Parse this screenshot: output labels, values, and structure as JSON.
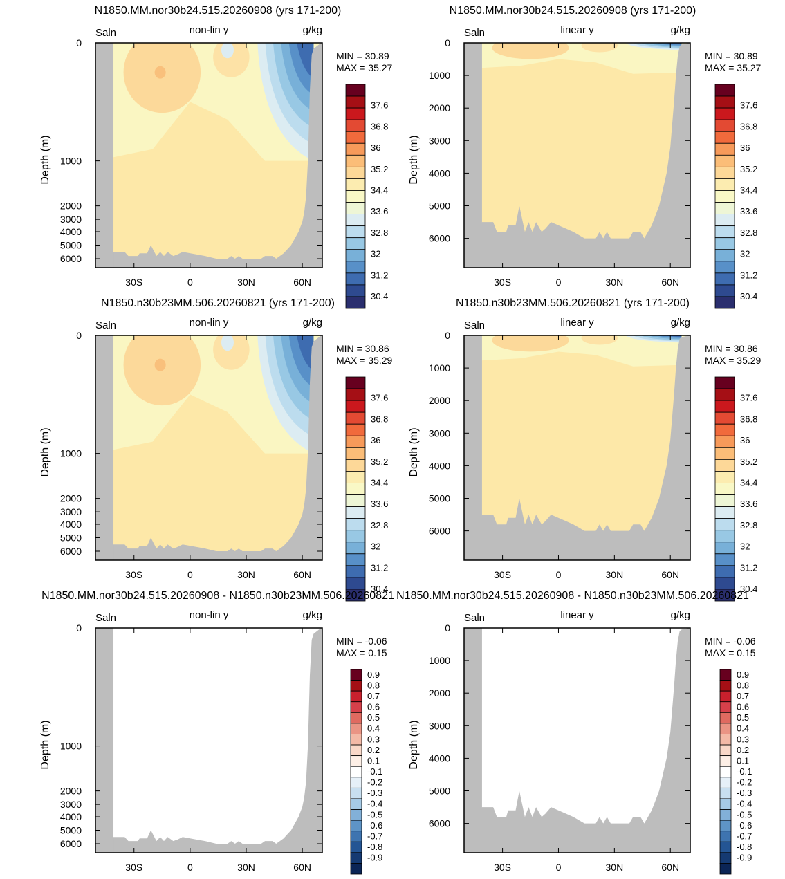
{
  "chart_data": [
    {
      "type": "heatmap",
      "title": "N1850.MM.nor30b24.515.20260908 (yrs 171-200)",
      "left_label": "Saln",
      "center_label": "non-lin y",
      "right_label": "g/kg",
      "ylabel": "Depth (m)",
      "y_scale": "non-linear",
      "yticks": [
        "0",
        "1000",
        "2000",
        "3000",
        "4000",
        "5000",
        "6000"
      ],
      "xticks": [
        "30S",
        "0",
        "30N",
        "60N"
      ],
      "min_text": "MIN =  30.89",
      "max_text": "MAX =  35.27",
      "colorbar_labels": [
        "37.6",
        "36.8",
        "36",
        "35.2",
        "34.4",
        "33.6",
        "32.8",
        "32",
        "31.2",
        "30.4"
      ],
      "colors": [
        "#67001f",
        "#a50f15",
        "#cb181d",
        "#e34a33",
        "#f16a3c",
        "#f79a5a",
        "#fbbd78",
        "#fdd898",
        "#fcecb0",
        "#f9f8c6",
        "#eef6d6",
        "#dcecf2",
        "#bcdcee",
        "#98c8e4",
        "#78b0d8",
        "#5890c8",
        "#3e6cb0",
        "#2e4a90",
        "#2a2e6e"
      ],
      "levels_summary": {
        "surface_north": 30.89,
        "subtropical_max": 35.27
      }
    },
    {
      "type": "heatmap",
      "title": "N1850.MM.nor30b24.515.20260908 (yrs 171-200)",
      "left_label": "Saln",
      "center_label": "linear y",
      "right_label": "g/kg",
      "ylabel": "Depth (m)",
      "y_scale": "linear",
      "yticks": [
        "0",
        "1000",
        "2000",
        "3000",
        "4000",
        "5000",
        "6000"
      ],
      "xticks": [
        "30S",
        "0",
        "30N",
        "60N"
      ],
      "min_text": "MIN =  30.89",
      "max_text": "MAX =  35.27",
      "colorbar_labels": [
        "37.6",
        "36.8",
        "36",
        "35.2",
        "34.4",
        "33.6",
        "32.8",
        "32",
        "31.2",
        "30.4"
      ]
    },
    {
      "type": "heatmap",
      "title": "N1850.n30b23MM.506.20260821 (yrs 171-200)",
      "left_label": "Saln",
      "center_label": "non-lin y",
      "right_label": "g/kg",
      "ylabel": "Depth (m)",
      "y_scale": "non-linear",
      "yticks": [
        "0",
        "1000",
        "2000",
        "3000",
        "4000",
        "5000",
        "6000"
      ],
      "xticks": [
        "30S",
        "0",
        "30N",
        "60N"
      ],
      "min_text": "MIN =  30.86",
      "max_text": "MAX =  35.29",
      "colorbar_labels": [
        "37.6",
        "36.8",
        "36",
        "35.2",
        "34.4",
        "33.6",
        "32.8",
        "32",
        "31.2",
        "30.4"
      ]
    },
    {
      "type": "heatmap",
      "title": "N1850.n30b23MM.506.20260821 (yrs 171-200)",
      "left_label": "Saln",
      "center_label": "linear y",
      "right_label": "g/kg",
      "ylabel": "Depth (m)",
      "y_scale": "linear",
      "yticks": [
        "0",
        "1000",
        "2000",
        "3000",
        "4000",
        "5000",
        "6000"
      ],
      "xticks": [
        "30S",
        "0",
        "30N",
        "60N"
      ],
      "min_text": "MIN =  30.86",
      "max_text": "MAX =  35.29",
      "colorbar_labels": [
        "37.6",
        "36.8",
        "36",
        "35.2",
        "34.4",
        "33.6",
        "32.8",
        "32",
        "31.2",
        "30.4"
      ]
    },
    {
      "type": "heatmap",
      "title": "N1850.MM.nor30b24.515.20260908 - N1850.n30b23MM.506.20260821",
      "left_label": "Saln",
      "center_label": "non-lin y",
      "right_label": "g/kg",
      "ylabel": "Depth (m)",
      "y_scale": "non-linear",
      "yticks": [
        "0",
        "1000",
        "2000",
        "3000",
        "4000",
        "5000",
        "6000"
      ],
      "xticks": [
        "30S",
        "0",
        "30N",
        "60N"
      ],
      "min_text": "MIN =  -0.06",
      "max_text": "MAX =  0.15",
      "colorbar_labels": [
        "0.9",
        "0.8",
        "0.7",
        "0.6",
        "0.5",
        "0.4",
        "0.3",
        "0.2",
        "0.1",
        "-0.1",
        "-0.2",
        "-0.3",
        "-0.4",
        "-0.5",
        "-0.6",
        "-0.7",
        "-0.8",
        "-0.9"
      ]
    },
    {
      "type": "heatmap",
      "title": "N1850.MM.nor30b24.515.20260908 - N1850.n30b23MM.506.20260821",
      "left_label": "Saln",
      "center_label": "linear y",
      "right_label": "g/kg",
      "ylabel": "Depth (m)",
      "y_scale": "linear",
      "yticks": [
        "0",
        "1000",
        "2000",
        "3000",
        "4000",
        "5000",
        "6000"
      ],
      "xticks": [
        "30S",
        "0",
        "30N",
        "60N"
      ],
      "min_text": "MIN =  -0.06",
      "max_text": "MAX =  0.15",
      "colorbar_labels": [
        "0.9",
        "0.8",
        "0.7",
        "0.6",
        "0.5",
        "0.4",
        "0.3",
        "0.2",
        "0.1",
        "-0.1",
        "-0.2",
        "-0.3",
        "-0.4",
        "-0.5",
        "-0.6",
        "-0.7",
        "-0.8",
        "-0.9"
      ]
    }
  ],
  "diff_colors": [
    "#67001f",
    "#a50f15",
    "#c9202d",
    "#d6404a",
    "#e06a60",
    "#ea9484",
    "#f3b9a6",
    "#f9d8c8",
    "#fdefe6",
    "#ffffff",
    "#e6f0f8",
    "#c8dff0",
    "#a6cae6",
    "#82b0d8",
    "#5e94c6",
    "#3e74b0",
    "#245594",
    "#153a72",
    "#0b2556"
  ],
  "colors": {
    "land": "#bdbdbd"
  }
}
